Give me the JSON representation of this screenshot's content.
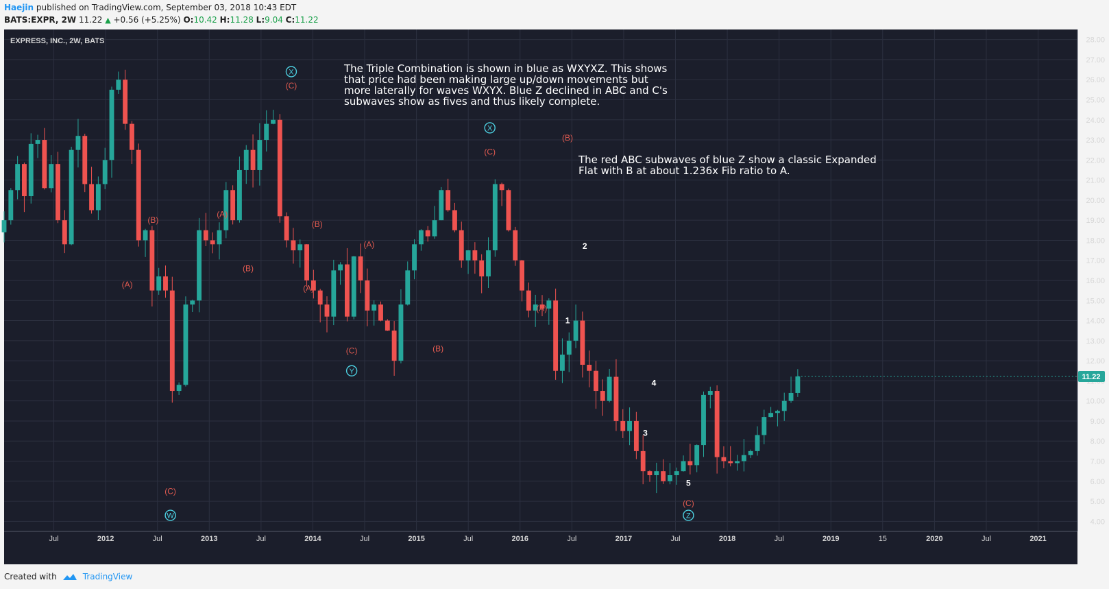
{
  "header": {
    "author": "Haejin",
    "published": "published on TradingView.com, September 03, 2018 10:43 EDT",
    "symbol_line": "BATS:EXPR, 2W",
    "last": "11.22",
    "change": "+0.56 (+5.25%)",
    "o_label": "O:",
    "o_value": "10.42",
    "h_label": "H:",
    "h_value": "11.28",
    "l_label": "L:",
    "l_value": "9.04",
    "c_label": "C:",
    "c_value": "11.22"
  },
  "footer": {
    "created_with": "Created with",
    "brand": "TradingView"
  },
  "colors": {
    "background": "#1b1e2b",
    "grid": "#2c3040",
    "up": "#26a69a",
    "down": "#ef5350",
    "wave_blue": "#4dd0e1",
    "wave_red": "#e05a50",
    "price_badge": "#26a69a"
  },
  "chart_data": {
    "type": "candlestick",
    "symbol_label": "EXPRESS, INC., 2W, BATS",
    "ylim": [
      3.5,
      28.5
    ],
    "y_ticks": [
      "4.00",
      "5.00",
      "6.00",
      "7.00",
      "8.00",
      "9.00",
      "10.00",
      "11.00",
      "12.00",
      "13.00",
      "14.00",
      "15.00",
      "16.00",
      "17.00",
      "18.00",
      "19.00",
      "20.00",
      "21.00",
      "22.00",
      "23.00",
      "24.00",
      "25.00",
      "26.00",
      "27.00",
      "28.00"
    ],
    "x_ticks": [
      "Jul",
      "2012",
      "Jul",
      "2013",
      "Jul",
      "2014",
      "Jul",
      "2015",
      "Jul",
      "2016",
      "Jul",
      "2017",
      "Jul",
      "2018",
      "Jul",
      "2019",
      "15",
      "2020",
      "Jul",
      "2021"
    ],
    "last_price": "11.22",
    "close_path": [
      19.0,
      20.5,
      21.8,
      20.2,
      22.8,
      23.0,
      20.6,
      21.8,
      19.0,
      17.8,
      22.5,
      23.2,
      20.8,
      19.5,
      20.8,
      22.0,
      25.5,
      26.0,
      23.8,
      22.5,
      18.0,
      18.5,
      15.5,
      16.2,
      15.5,
      10.5,
      10.8,
      14.8,
      15.0,
      18.5,
      18.0,
      17.8,
      18.5,
      20.5,
      19.0,
      21.5,
      22.5,
      21.5,
      23.0,
      23.8,
      24.0,
      19.2,
      18.0,
      17.5,
      17.8,
      16.0,
      15.5,
      14.8,
      14.2,
      16.5,
      16.8,
      14.2,
      17.2,
      16.0,
      14.5,
      14.8,
      14.0,
      13.5,
      12.0,
      14.8,
      16.5,
      17.8,
      18.5,
      18.2,
      19.0,
      20.5,
      19.5,
      18.5,
      17.0,
      17.5,
      17.0,
      16.2,
      17.5,
      20.8,
      20.5,
      18.5,
      17.0,
      15.5,
      14.5,
      14.8,
      14.6,
      15.0,
      11.5,
      12.3,
      13.0,
      14.0,
      11.8,
      11.5,
      10.5,
      10.0,
      11.2,
      9.0,
      8.5,
      9.0,
      7.5,
      6.5,
      6.3,
      6.5,
      6.0,
      6.3,
      6.5,
      7.0,
      6.8,
      7.8,
      10.3,
      10.5,
      7.2,
      7.0,
      6.9,
      7.0,
      7.3,
      7.5,
      8.3,
      9.2,
      9.4,
      9.5,
      10.0,
      10.4,
      11.22
    ],
    "wave_labels": [
      {
        "text": "W",
        "style": "circle",
        "series": "blue",
        "x": "2012-08",
        "y": 4.3
      },
      {
        "text": "(C)",
        "style": "plain",
        "series": "red",
        "x": "2012-08",
        "y": 5.5
      },
      {
        "text": "(A)",
        "style": "plain",
        "series": "red",
        "x": "2012-03",
        "y": 15.8
      },
      {
        "text": "(B)",
        "style": "plain",
        "series": "red",
        "x": "2012-06",
        "y": 19.0
      },
      {
        "text": "(A)",
        "style": "plain",
        "series": "red",
        "x": "2013-02",
        "y": 19.3
      },
      {
        "text": "(B)",
        "style": "plain",
        "series": "red",
        "x": "2013-05",
        "y": 16.6
      },
      {
        "text": "X",
        "style": "circle",
        "series": "blue",
        "x": "2013-10",
        "y": 26.4
      },
      {
        "text": "(C)",
        "style": "plain",
        "series": "red",
        "x": "2013-10",
        "y": 25.7
      },
      {
        "text": "(B)",
        "style": "plain",
        "series": "red",
        "x": "2014-01",
        "y": 18.8
      },
      {
        "text": "(A)",
        "style": "plain",
        "series": "red",
        "x": "2013-12",
        "y": 15.6
      },
      {
        "text": "(A)",
        "style": "plain",
        "series": "red",
        "x": "2014-07",
        "y": 17.8
      },
      {
        "text": "(C)",
        "style": "plain",
        "series": "red",
        "x": "2014-05",
        "y": 12.5
      },
      {
        "text": "Y",
        "style": "circle",
        "series": "blue",
        "x": "2014-05",
        "y": 11.5
      },
      {
        "text": "(B)",
        "style": "plain",
        "series": "red",
        "x": "2015-03",
        "y": 12.6
      },
      {
        "text": "X",
        "style": "circle",
        "series": "blue",
        "x": "2015-09",
        "y": 23.6
      },
      {
        "text": "(C)",
        "style": "plain",
        "series": "red",
        "x": "2015-09",
        "y": 22.4
      },
      {
        "text": "(B)",
        "style": "plain",
        "series": "red",
        "x": "2016-06",
        "y": 23.1
      },
      {
        "text": "(A)",
        "style": "plain",
        "series": "red",
        "x": "2016-03",
        "y": 14.6
      },
      {
        "text": "2",
        "style": "plain",
        "series": "white",
        "x": "2016-08",
        "y": 17.7
      },
      {
        "text": "1",
        "style": "plain",
        "series": "white",
        "x": "2016-06",
        "y": 14.0
      },
      {
        "text": "4",
        "style": "plain",
        "series": "white",
        "x": "2017-04",
        "y": 10.9
      },
      {
        "text": "3",
        "style": "plain",
        "series": "white",
        "x": "2017-03",
        "y": 8.4
      },
      {
        "text": "5",
        "style": "plain",
        "series": "white",
        "x": "2017-08",
        "y": 5.9
      },
      {
        "text": "(C)",
        "style": "plain",
        "series": "red",
        "x": "2017-08",
        "y": 4.9
      },
      {
        "text": "Z",
        "style": "circle",
        "series": "blue",
        "x": "2017-08",
        "y": 4.3
      }
    ],
    "annotations": [
      {
        "lines": [
          "The Triple Combination is shown in blue as WXYXZ. This shows",
          "that price had been making large up/down movements but",
          "more laterally for waves WXYX. Blue Z declined in ABC and C's",
          "subwaves show as fives and thus likely complete."
        ]
      },
      {
        "lines": [
          "The red ABC subwaves of blue Z show a classic Expanded",
          "Flat with B at about 1.236x Fib ratio to A."
        ]
      }
    ]
  }
}
